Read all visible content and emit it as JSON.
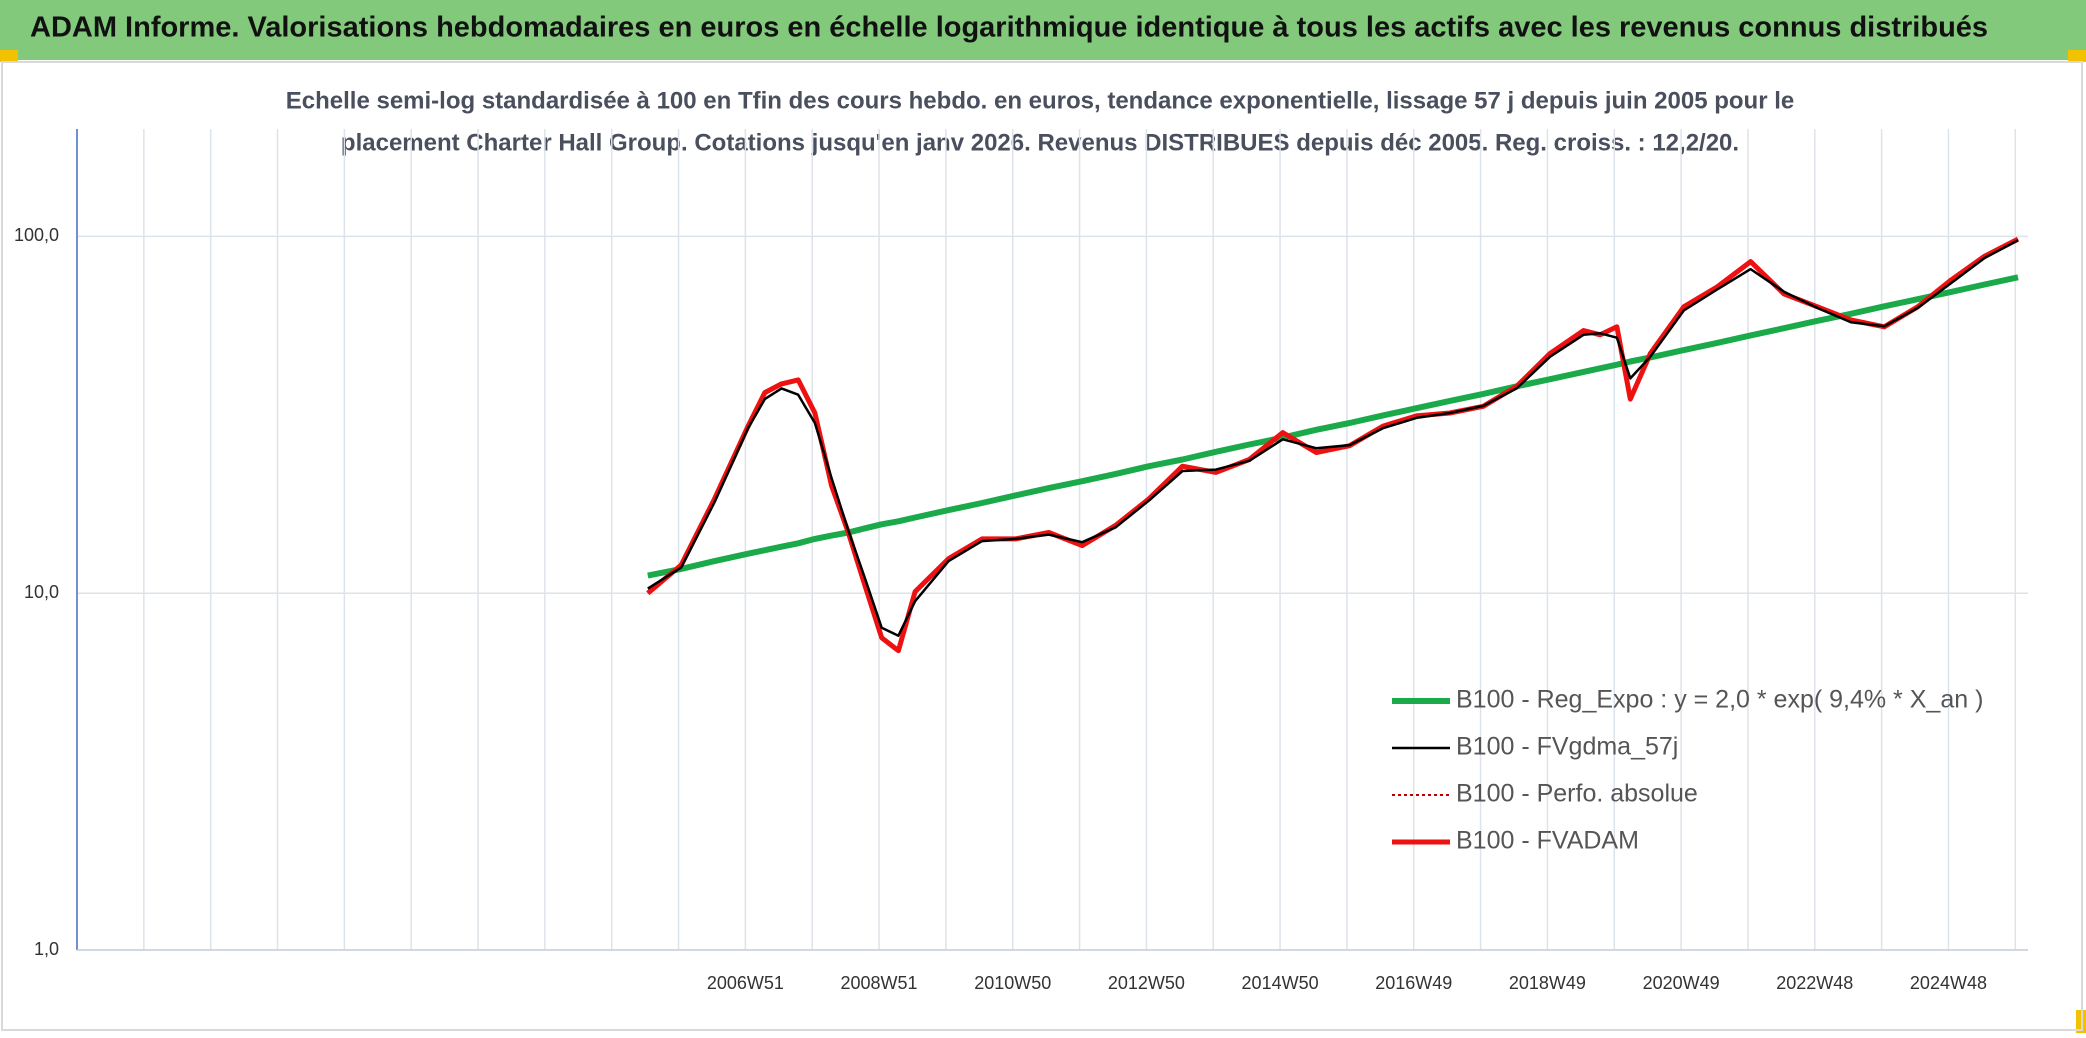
{
  "chart_data": {
    "type": "line",
    "title": "ADAM Informe. Valorisations hebdomadaires en euros en échelle logarithmique identique à tous les actifs avec les revenus connus distribués",
    "subtitle": [
      "Echelle semi-log standardisée à 100 en Tfin des cours hebdo. en euros, tendance exponentielle, lissage 57 j depuis juin 2005 pour le",
      "placement Charter Hall Group. Cotations jusqu'en janv 2026. Revenus DISTRIBUES depuis déc 2005. Reg. croiss. : 12,2/20."
    ],
    "log_y": true,
    "grid": true,
    "legend": "right",
    "ylim": [
      1,
      200
    ],
    "yticks": [
      {
        "value": 1,
        "label": "1,0"
      },
      {
        "value": 10,
        "label": "10,0"
      },
      {
        "value": 100,
        "label": "100,0"
      }
    ],
    "xlim": [
      1996.96,
      2026.15
    ],
    "xticks": [
      {
        "value": 1996.96,
        "label": null
      },
      {
        "value": 1997.96,
        "label": null
      },
      {
        "value": 1998.96,
        "label": null
      },
      {
        "value": 1999.96,
        "label": null
      },
      {
        "value": 2000.96,
        "label": null
      },
      {
        "value": 2001.96,
        "label": null
      },
      {
        "value": 2002.96,
        "label": null
      },
      {
        "value": 2003.96,
        "label": null
      },
      {
        "value": 2004.96,
        "label": null
      },
      {
        "value": 2005.96,
        "label": null
      },
      {
        "value": 2006.96,
        "label": "2006W51"
      },
      {
        "value": 2007.96,
        "label": null
      },
      {
        "value": 2008.96,
        "label": "2008W51"
      },
      {
        "value": 2009.96,
        "label": null
      },
      {
        "value": 2010.96,
        "label": "2010W50"
      },
      {
        "value": 2011.96,
        "label": null
      },
      {
        "value": 2012.96,
        "label": "2012W50"
      },
      {
        "value": 2013.96,
        "label": null
      },
      {
        "value": 2014.96,
        "label": "2014W50"
      },
      {
        "value": 2015.96,
        "label": null
      },
      {
        "value": 2016.96,
        "label": "2016W49"
      },
      {
        "value": 2017.96,
        "label": null
      },
      {
        "value": 2018.96,
        "label": "2018W49"
      },
      {
        "value": 2019.96,
        "label": null
      },
      {
        "value": 2020.96,
        "label": "2020W49"
      },
      {
        "value": 2021.96,
        "label": null
      },
      {
        "value": 2022.96,
        "label": "2022W48"
      },
      {
        "value": 2023.96,
        "label": null
      },
      {
        "value": 2024.96,
        "label": "2024W48"
      },
      {
        "value": 2025.96,
        "label": null
      }
    ],
    "x": [
      2005.5,
      2006,
      2006.5,
      2007,
      2007.25,
      2007.5,
      2007.75,
      2008,
      2008.25,
      2008.5,
      2008.75,
      2009,
      2009.25,
      2009.5,
      2010,
      2010.5,
      2011,
      2011.5,
      2012,
      2012.5,
      2013,
      2013.5,
      2014,
      2014.5,
      2015,
      2015.5,
      2016,
      2016.5,
      2017,
      2017.5,
      2018,
      2018.5,
      2019,
      2019.5,
      2019.75,
      2020,
      2020.2,
      2020.5,
      2021,
      2021.5,
      2022,
      2022.5,
      2023,
      2023.5,
      2024,
      2024.5,
      2025,
      2025.5,
      2026
    ],
    "series": [
      {
        "name": "B100 - Reg_Expo : y = 2,0 * exp( 9,4% *  X_an )",
        "color": "#1aaa4a",
        "width": 6,
        "dash": null,
        "values": [
          11.2,
          11.7,
          12.3,
          12.9,
          13.2,
          13.5,
          13.8,
          14.2,
          14.5,
          14.8,
          15.2,
          15.6,
          15.9,
          16.3,
          17.1,
          17.9,
          18.8,
          19.7,
          20.6,
          21.6,
          22.7,
          23.7,
          24.9,
          26.1,
          27.3,
          28.7,
          30.0,
          31.5,
          33.0,
          34.6,
          36.2,
          38.0,
          39.8,
          41.7,
          42.7,
          43.7,
          44.6,
          45.8,
          48.0,
          50.3,
          52.8,
          55.3,
          58.0,
          60.7,
          63.7,
          66.7,
          69.9,
          73.3,
          76.8
        ]
      },
      {
        "name": "B100 - FVgdma_57j",
        "color": "#000000",
        "width": 2.5,
        "dash": null,
        "values": [
          10.3,
          11.8,
          18,
          29,
          35,
          37.5,
          36,
          30,
          21,
          15,
          11,
          8,
          7.6,
          9.5,
          12.3,
          14,
          14.2,
          14.6,
          13.9,
          15.3,
          18.2,
          22,
          22.2,
          23.5,
          27,
          25.5,
          26,
          29,
          31,
          32,
          33.5,
          37.5,
          46,
          53,
          53.5,
          52,
          40,
          46,
          62,
          71,
          81,
          70,
          63,
          57.5,
          56,
          63,
          74,
          87,
          97.5
        ]
      },
      {
        "name": "B100 - Perfo. absolue",
        "color": "#c00000",
        "width": 2,
        "dash": "3 3",
        "values": [
          10,
          12,
          18.4,
          29.4,
          36.5,
          38.6,
          39.6,
          32,
          20,
          14.8,
          10.5,
          7.5,
          6.9,
          10.1,
          12.5,
          14.2,
          14.2,
          14.8,
          13.6,
          15.5,
          18.4,
          22.7,
          21.8,
          23.7,
          28.2,
          24.8,
          25.9,
          29.4,
          31.4,
          32,
          33.4,
          38,
          47,
          54.5,
          53,
          55.8,
          35,
          47,
          63.5,
          72.2,
          85,
          69,
          63.5,
          58.3,
          55.8,
          63.5,
          75.5,
          88,
          98.3
        ]
      },
      {
        "name": "B100 - FVADAM",
        "color": "#ee1111",
        "width": 5,
        "dash": null,
        "values": [
          10,
          12,
          18.4,
          29.4,
          36.5,
          38.6,
          39.6,
          32,
          20,
          14.8,
          10.5,
          7.5,
          6.9,
          10.1,
          12.5,
          14.2,
          14.2,
          14.8,
          13.6,
          15.5,
          18.4,
          22.7,
          21.8,
          23.7,
          28.2,
          24.8,
          25.9,
          29.4,
          31.4,
          32,
          33.4,
          38,
          47,
          54.5,
          53,
          55.8,
          35,
          47,
          63.5,
          72.2,
          85,
          69,
          63.5,
          58.3,
          55.8,
          63.5,
          75.5,
          88,
          98.3
        ]
      }
    ]
  }
}
